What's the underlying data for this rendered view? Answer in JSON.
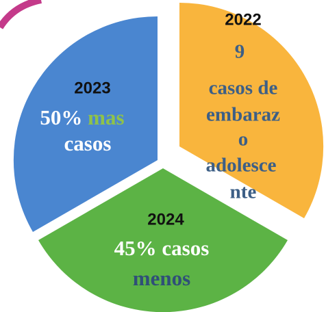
{
  "segments": [
    {
      "year": "2022",
      "lines": [
        "9",
        "casos de",
        "embaraz",
        "o",
        "adolesce",
        "nte"
      ]
    },
    {
      "year": "2023",
      "lines": [
        [
          "50%",
          "mas"
        ],
        "casos"
      ]
    },
    {
      "year": "2024",
      "lines": [
        "45% casos",
        "menos"
      ]
    }
  ]
}
